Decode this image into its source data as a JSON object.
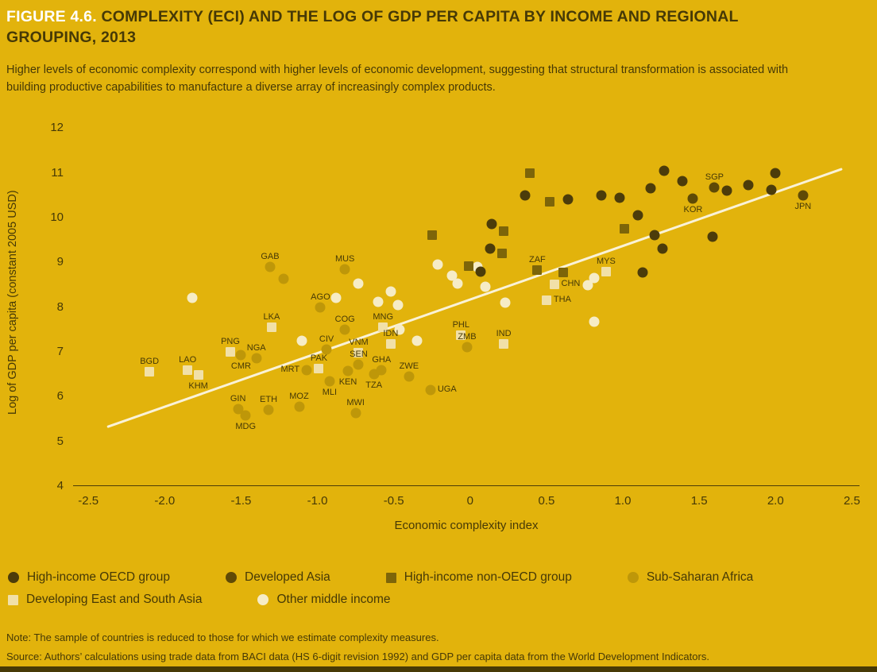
{
  "figure": {
    "label": "FIGURE 4.6.",
    "title": "COMPLEXITY (ECI) AND THE LOG OF GDP PER CAPITA BY INCOME AND REGIONAL GROUPING, 2013",
    "subtitle": "Higher levels of economic complexity correspond with higher levels of economic development, suggesting that structural transformation is associated with building productive capabilities to manufacture a diverse array of increasingly complex products.",
    "note": "Note: The sample of countries is reduced to those for which we estimate complexity measures.",
    "source": "Source: Authors’ calculations using trade data from BACI data (HS 6-digit revision 1992) and GDP per capita data from the World Development Indicators."
  },
  "colors": {
    "background": "#E2B30C",
    "ink": "#463906",
    "figure_label": "#FFFFFF",
    "trendline": "#FAF2D7",
    "axis": "#4A3C08",
    "bottom_bar": "#473A06"
  },
  "chart_data": {
    "type": "scatter",
    "title": "Complexity (ECI) and the log of GDP per capita by income and regional grouping, 2013",
    "xlabel": "Economic complexity index",
    "ylabel": "Log of GDP per capita (constant 2005 USD)",
    "xlim": [
      -2.6,
      2.55
    ],
    "ylim": [
      4,
      12.2
    ],
    "grid": false,
    "legend_position": "bottom",
    "x_ticks": [
      "-2.5",
      "-2.0",
      "-1.5",
      "-1.0",
      "-0.5",
      "0",
      "0.5",
      "1.0",
      "1.5",
      "2.0",
      "2.5"
    ],
    "y_ticks": [
      12,
      11,
      10,
      9,
      8,
      7,
      6,
      5,
      4
    ],
    "trendline": {
      "x1": -2.37,
      "y1": 5.33,
      "x2": 2.43,
      "y2": 11.08
    },
    "categories": {
      "oecd": {
        "label": "High-income OECD group",
        "color": "#4C3C0A",
        "shape": "circle"
      },
      "dasia": {
        "label": "Developed Asia",
        "color": "#5F4A06",
        "shape": "circle"
      },
      "nonoecd": {
        "label": "High-income non-OECD group",
        "color": "#7D6509",
        "shape": "square"
      },
      "ssa": {
        "label": "Sub-Saharan Africa",
        "color": "#BE9709",
        "shape": "circle"
      },
      "desa": {
        "label": "Developing East and South Asia",
        "color": "#F1E0A8",
        "shape": "square"
      },
      "omi": {
        "label": "Other middle income",
        "color": "#F6ECC6",
        "shape": "circle"
      }
    },
    "legend_rows": [
      [
        "oecd",
        "dasia",
        "nonoecd",
        "ssa"
      ],
      [
        "desa",
        "omi"
      ]
    ],
    "points": [
      {
        "x": -1.82,
        "y": 8.2,
        "c": "omi"
      },
      {
        "x": -1.1,
        "y": 7.25,
        "c": "omi"
      },
      {
        "x": -0.88,
        "y": 8.2,
        "c": "omi"
      },
      {
        "x": -0.73,
        "y": 8.52,
        "c": "omi"
      },
      {
        "x": -0.6,
        "y": 8.12,
        "c": "omi"
      },
      {
        "x": -0.52,
        "y": 8.35,
        "c": "omi"
      },
      {
        "x": -0.47,
        "y": 8.05,
        "c": "omi"
      },
      {
        "x": -0.46,
        "y": 7.5,
        "c": "omi"
      },
      {
        "x": -0.35,
        "y": 7.25,
        "c": "omi"
      },
      {
        "x": -0.21,
        "y": 8.95,
        "c": "omi"
      },
      {
        "x": -0.12,
        "y": 8.7,
        "c": "omi"
      },
      {
        "x": -0.08,
        "y": 8.52,
        "c": "omi"
      },
      {
        "x": 0.05,
        "y": 8.9,
        "c": "omi"
      },
      {
        "x": 0.1,
        "y": 8.45,
        "c": "omi"
      },
      {
        "x": 0.23,
        "y": 8.1,
        "c": "omi"
      },
      {
        "x": 0.81,
        "y": 8.65,
        "c": "omi"
      },
      {
        "x": 0.77,
        "y": 8.49,
        "c": "omi"
      },
      {
        "x": 0.81,
        "y": 7.67,
        "c": "omi"
      },
      {
        "x": -2.1,
        "y": 6.55,
        "c": "desa",
        "l": "BGD",
        "lpos": "above"
      },
      {
        "x": -1.85,
        "y": 6.6,
        "c": "desa",
        "l": "LAO",
        "lpos": "above"
      },
      {
        "x": -1.78,
        "y": 6.48,
        "c": "desa",
        "l": "KHM",
        "lpos": "below"
      },
      {
        "x": -1.57,
        "y": 7.0,
        "c": "desa",
        "l": "PNG",
        "lpos": "above"
      },
      {
        "x": -1.3,
        "y": 7.55,
        "c": "desa",
        "l": "LKA",
        "lpos": "above"
      },
      {
        "x": -0.99,
        "y": 6.62,
        "c": "desa",
        "l": "PAK",
        "lpos": "above"
      },
      {
        "x": -0.73,
        "y": 6.98,
        "c": "desa",
        "l": "VNM",
        "lpos": "above"
      },
      {
        "x": -0.57,
        "y": 7.55,
        "c": "desa",
        "l": "MNG",
        "lpos": "above"
      },
      {
        "x": -0.52,
        "y": 7.18,
        "c": "desa",
        "l": "IDN",
        "lpos": "above"
      },
      {
        "x": -0.06,
        "y": 7.38,
        "c": "desa",
        "l": "PHL",
        "lpos": "above"
      },
      {
        "x": 0.22,
        "y": 7.18,
        "c": "desa",
        "l": "IND",
        "lpos": "above"
      },
      {
        "x": 0.5,
        "y": 8.15,
        "c": "desa",
        "l": "THA",
        "lpos": "right"
      },
      {
        "x": 0.55,
        "y": 8.5,
        "c": "desa",
        "l": "CHN",
        "lpos": "right"
      },
      {
        "x": 0.89,
        "y": 8.8,
        "c": "desa",
        "l": "MYS",
        "lpos": "above"
      },
      {
        "x": -1.52,
        "y": 5.72,
        "c": "ssa",
        "l": "GIN",
        "lpos": "above"
      },
      {
        "x": -1.5,
        "y": 6.92,
        "c": "ssa",
        "l": "CMR",
        "lpos": "below"
      },
      {
        "x": -1.47,
        "y": 5.58,
        "c": "ssa",
        "l": "MDG",
        "lpos": "below"
      },
      {
        "x": -1.4,
        "y": 6.85,
        "c": "ssa",
        "l": "NGA",
        "lpos": "above"
      },
      {
        "x": -1.32,
        "y": 5.7,
        "c": "ssa",
        "l": "ETH",
        "lpos": "above"
      },
      {
        "x": -1.31,
        "y": 8.9,
        "c": "ssa",
        "l": "GAB",
        "lpos": "above"
      },
      {
        "x": -1.22,
        "y": 8.64,
        "c": "ssa"
      },
      {
        "x": -1.12,
        "y": 5.78,
        "c": "ssa",
        "l": "MOZ",
        "lpos": "above"
      },
      {
        "x": -1.07,
        "y": 6.6,
        "c": "ssa",
        "l": "MRT",
        "lpos": "left"
      },
      {
        "x": -0.98,
        "y": 8.0,
        "c": "ssa",
        "l": "AGO",
        "lpos": "above"
      },
      {
        "x": -0.94,
        "y": 7.05,
        "c": "ssa",
        "l": "CIV",
        "lpos": "above"
      },
      {
        "x": -0.92,
        "y": 6.35,
        "c": "ssa",
        "l": "MLI",
        "lpos": "below"
      },
      {
        "x": -0.82,
        "y": 8.85,
        "c": "ssa",
        "l": "MUS",
        "lpos": "above"
      },
      {
        "x": -0.82,
        "y": 7.5,
        "c": "ssa",
        "l": "COG",
        "lpos": "above"
      },
      {
        "x": -0.8,
        "y": 6.58,
        "c": "ssa",
        "l": "KEN",
        "lpos": "below"
      },
      {
        "x": -0.75,
        "y": 5.64,
        "c": "ssa",
        "l": "MWI",
        "lpos": "above"
      },
      {
        "x": -0.73,
        "y": 6.72,
        "c": "ssa",
        "l": "SEN",
        "lpos": "above"
      },
      {
        "x": -0.63,
        "y": 6.5,
        "c": "ssa",
        "l": "TZA",
        "lpos": "below"
      },
      {
        "x": -0.58,
        "y": 6.6,
        "c": "ssa",
        "l": "GHA",
        "lpos": "above"
      },
      {
        "x": -0.4,
        "y": 6.45,
        "c": "ssa",
        "l": "ZWE",
        "lpos": "above"
      },
      {
        "x": -0.26,
        "y": 6.15,
        "c": "ssa",
        "l": "UGA",
        "lpos": "right"
      },
      {
        "x": -0.02,
        "y": 7.1,
        "c": "ssa",
        "l": "ZMB",
        "lpos": "above"
      },
      {
        "x": -0.25,
        "y": 9.6,
        "c": "nonoecd"
      },
      {
        "x": -0.01,
        "y": 8.92,
        "c": "nonoecd"
      },
      {
        "x": 0.21,
        "y": 9.2,
        "c": "nonoecd"
      },
      {
        "x": 0.22,
        "y": 9.7,
        "c": "nonoecd"
      },
      {
        "x": 0.39,
        "y": 11.0,
        "c": "nonoecd"
      },
      {
        "x": 0.44,
        "y": 8.83,
        "c": "nonoecd",
        "l": "ZAF",
        "lpos": "above"
      },
      {
        "x": 0.52,
        "y": 10.35,
        "c": "nonoecd"
      },
      {
        "x": 0.61,
        "y": 8.77,
        "c": "nonoecd"
      },
      {
        "x": 1.01,
        "y": 9.75,
        "c": "nonoecd"
      },
      {
        "x": 1.46,
        "y": 10.42,
        "c": "dasia",
        "l": "KOR",
        "lpos": "below"
      },
      {
        "x": 1.6,
        "y": 10.67,
        "c": "dasia",
        "l": "SGP",
        "lpos": "above"
      },
      {
        "x": 2.18,
        "y": 10.5,
        "c": "dasia",
        "l": "JPN",
        "lpos": "below"
      },
      {
        "x": 0.07,
        "y": 8.8,
        "c": "oecd"
      },
      {
        "x": 0.13,
        "y": 9.3,
        "c": "oecd"
      },
      {
        "x": 0.14,
        "y": 9.85,
        "c": "oecd"
      },
      {
        "x": 0.36,
        "y": 10.5,
        "c": "oecd"
      },
      {
        "x": 0.64,
        "y": 10.4,
        "c": "oecd"
      },
      {
        "x": 0.86,
        "y": 10.5,
        "c": "oecd"
      },
      {
        "x": 0.98,
        "y": 10.45,
        "c": "oecd"
      },
      {
        "x": 1.1,
        "y": 10.05,
        "c": "oecd"
      },
      {
        "x": 1.13,
        "y": 8.78,
        "c": "oecd"
      },
      {
        "x": 1.18,
        "y": 10.66,
        "c": "oecd"
      },
      {
        "x": 1.21,
        "y": 9.6,
        "c": "oecd"
      },
      {
        "x": 1.26,
        "y": 9.3,
        "c": "oecd"
      },
      {
        "x": 1.27,
        "y": 11.05,
        "c": "oecd"
      },
      {
        "x": 1.39,
        "y": 10.82,
        "c": "oecd"
      },
      {
        "x": 1.59,
        "y": 9.58,
        "c": "oecd"
      },
      {
        "x": 1.68,
        "y": 10.6,
        "c": "oecd"
      },
      {
        "x": 1.82,
        "y": 10.72,
        "c": "oecd"
      },
      {
        "x": 1.97,
        "y": 10.62,
        "c": "oecd"
      },
      {
        "x": 2.0,
        "y": 11.0,
        "c": "oecd"
      }
    ]
  }
}
